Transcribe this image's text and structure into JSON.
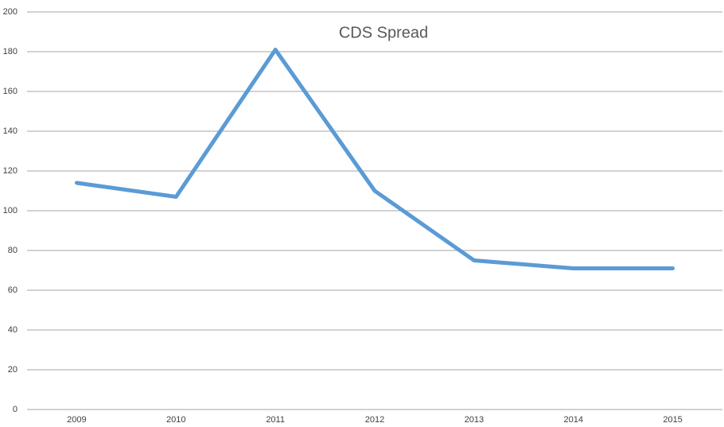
{
  "chart_data": {
    "type": "line",
    "title": "CDS Spread",
    "categories": [
      "2009",
      "2010",
      "2011",
      "2012",
      "2013",
      "2014",
      "2015"
    ],
    "series": [
      {
        "name": "CDS Spread",
        "color": "#5b9bd5",
        "values": [
          114,
          107,
          181,
          110,
          75,
          71,
          71
        ]
      }
    ],
    "ylim": [
      0,
      200
    ],
    "yticks": [
      0,
      20,
      40,
      60,
      80,
      100,
      120,
      140,
      160,
      180,
      200
    ],
    "grid": true
  }
}
